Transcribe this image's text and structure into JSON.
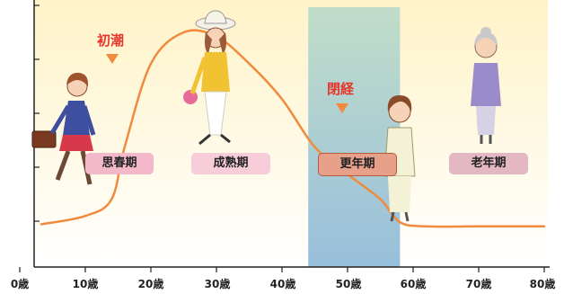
{
  "events": {
    "menarche": "初潮",
    "menopause": "閉経"
  },
  "phases": {
    "puberty": "思春期",
    "maturity": "成熟期",
    "menopause": "更年期",
    "senescence": "老年期"
  },
  "x_axis": {
    "ticks": [
      "0歳",
      "10歳",
      "20歳",
      "30歳",
      "40歳",
      "50歳",
      "60歳",
      "70歳",
      "80歳"
    ],
    "range": [
      0,
      80
    ]
  },
  "curve": {
    "color": "#f08a3c",
    "points": [
      [
        0,
        8
      ],
      [
        10,
        12
      ],
      [
        14,
        20
      ],
      [
        16,
        45
      ],
      [
        20,
        85
      ],
      [
        25,
        100
      ],
      [
        30,
        98
      ],
      [
        35,
        85
      ],
      [
        40,
        68
      ],
      [
        45,
        45
      ],
      [
        50,
        32
      ],
      [
        55,
        20
      ],
      [
        58,
        9
      ],
      [
        62,
        7
      ],
      [
        70,
        7
      ],
      [
        80,
        7
      ]
    ]
  },
  "menopause_band": {
    "start_age": 44,
    "end_age": 58,
    "color": "#9fc7d6"
  },
  "colors": {
    "background_top": "#fff4d2",
    "background_bottom": "#ffffff",
    "marker": "#f08a3c"
  }
}
